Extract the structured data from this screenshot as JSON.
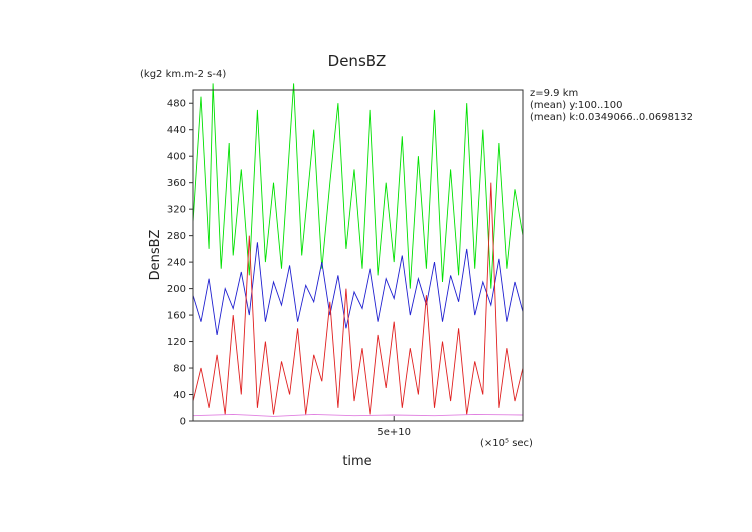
{
  "chart_data": {
    "type": "line",
    "title": "DensBZ",
    "ylabel": "DensBZ",
    "xlabel": "time",
    "y_units": "(kg2 km.m-2 s-4)",
    "x_units": "(×10⁵ sec)",
    "annotations": [
      "z=9.9 km",
      "(mean) y:100..100",
      "(mean) k:0.0349066..0.0698132"
    ],
    "xlim": [
      0,
      82000000000
    ],
    "ylim": [
      0,
      500
    ],
    "yticks": [
      0,
      40,
      80,
      120,
      160,
      200,
      240,
      280,
      320,
      360,
      400,
      440,
      480
    ],
    "xticks": [
      {
        "value": 50000000000,
        "label": "5e+10"
      }
    ],
    "grid": false,
    "legend": "none",
    "series": [
      {
        "color": "#00e000",
        "x": [
          0,
          2000000000,
          4000000000,
          5000000000,
          7000000000,
          9000000000,
          10000000000,
          12000000000,
          14000000000,
          16000000000,
          18000000000,
          20000000000,
          22000000000,
          25000000000,
          27000000000,
          30000000000,
          32000000000,
          34000000000,
          36000000000,
          38000000000,
          40000000000,
          42000000000,
          44000000000,
          46000000000,
          48000000000,
          50000000000,
          52000000000,
          54000000000,
          56000000000,
          58000000000,
          60000000000,
          62000000000,
          64000000000,
          66000000000,
          68000000000,
          70000000000,
          72000000000,
          74000000000,
          76000000000,
          78000000000,
          80000000000,
          82000000000
        ],
        "y": [
          300,
          490,
          260,
          510,
          230,
          420,
          250,
          380,
          220,
          470,
          240,
          360,
          230,
          510,
          250,
          440,
          230,
          360,
          480,
          260,
          380,
          230,
          470,
          220,
          360,
          240,
          430,
          200,
          400,
          230,
          470,
          210,
          380,
          220,
          480,
          230,
          440,
          200,
          420,
          230,
          350,
          280
        ]
      },
      {
        "color": "#2020d0",
        "x": [
          0,
          2000000000,
          4000000000,
          6000000000,
          8000000000,
          10000000000,
          12000000000,
          14000000000,
          16000000000,
          18000000000,
          20000000000,
          22000000000,
          24000000000,
          26000000000,
          28000000000,
          30000000000,
          32000000000,
          34000000000,
          36000000000,
          38000000000,
          40000000000,
          42000000000,
          44000000000,
          46000000000,
          48000000000,
          50000000000,
          52000000000,
          54000000000,
          56000000000,
          58000000000,
          60000000000,
          62000000000,
          64000000000,
          66000000000,
          68000000000,
          70000000000,
          72000000000,
          74000000000,
          76000000000,
          78000000000,
          80000000000,
          82000000000
        ],
        "y": [
          190,
          150,
          215,
          130,
          200,
          170,
          225,
          160,
          270,
          150,
          210,
          175,
          235,
          150,
          205,
          180,
          240,
          160,
          220,
          140,
          195,
          170,
          230,
          150,
          215,
          185,
          250,
          160,
          215,
          175,
          240,
          150,
          220,
          180,
          260,
          160,
          210,
          175,
          245,
          150,
          210,
          165
        ]
      },
      {
        "color": "#e02020",
        "x": [
          0,
          2000000000,
          4000000000,
          6000000000,
          8000000000,
          10000000000,
          12000000000,
          14000000000,
          16000000000,
          18000000000,
          20000000000,
          22000000000,
          24000000000,
          26000000000,
          28000000000,
          30000000000,
          32000000000,
          34000000000,
          36000000000,
          38000000000,
          40000000000,
          42000000000,
          44000000000,
          46000000000,
          48000000000,
          50000000000,
          52000000000,
          54000000000,
          56000000000,
          58000000000,
          60000000000,
          62000000000,
          64000000000,
          66000000000,
          68000000000,
          70000000000,
          72000000000,
          74000000000,
          76000000000,
          78000000000,
          80000000000,
          82000000000
        ],
        "y": [
          30,
          80,
          20,
          100,
          10,
          160,
          40,
          280,
          20,
          120,
          10,
          90,
          40,
          140,
          10,
          100,
          60,
          180,
          20,
          200,
          30,
          110,
          10,
          130,
          50,
          150,
          20,
          110,
          40,
          190,
          20,
          120,
          30,
          140,
          10,
          90,
          40,
          360,
          20,
          110,
          30,
          80
        ]
      },
      {
        "color": "#e080e0",
        "x": [
          0,
          10000000000,
          20000000000,
          30000000000,
          40000000000,
          50000000000,
          60000000000,
          70000000000,
          82000000000
        ],
        "y": [
          8,
          10,
          7,
          10,
          8,
          9,
          8,
          10,
          9
        ]
      }
    ]
  }
}
